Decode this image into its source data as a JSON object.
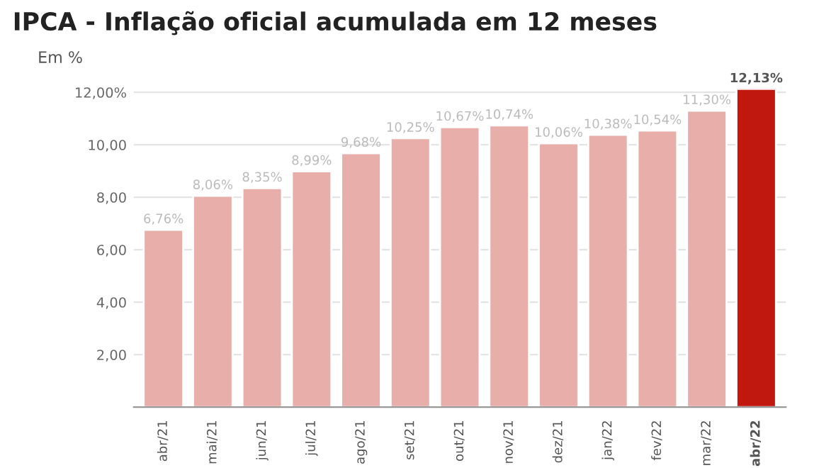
{
  "chart_data": {
    "type": "bar",
    "title": "IPCA - Inflação oficial acumulada em 12 meses",
    "subtitle": "Em %",
    "categories": [
      "abr/21",
      "mai/21",
      "jun/21",
      "jul/21",
      "ago/21",
      "set/21",
      "out/21",
      "nov/21",
      "dez/21",
      "jan/22",
      "fev/22",
      "mar/22",
      "abr/22"
    ],
    "values": [
      6.76,
      8.06,
      8.35,
      8.99,
      9.68,
      10.25,
      10.67,
      10.74,
      10.06,
      10.38,
      10.54,
      11.3,
      12.13
    ],
    "value_labels": [
      "6,76%",
      "8,06%",
      "8,35%",
      "8,99%",
      "9,68%",
      "10,25%",
      "10,67%",
      "10,74%",
      "10,06%",
      "10,38%",
      "10,54%",
      "11,30%",
      "12,13%"
    ],
    "colors": [
      "#e8aeaa",
      "#e8aeaa",
      "#e8aeaa",
      "#e8aeaa",
      "#e8aeaa",
      "#e8aeaa",
      "#e8aeaa",
      "#e8aeaa",
      "#e8aeaa",
      "#e8aeaa",
      "#e8aeaa",
      "#e8aeaa",
      "#c0170f"
    ],
    "ylim": [
      0,
      12.13
    ],
    "yticks": [
      {
        "value": 2,
        "label": "2,00"
      },
      {
        "value": 4,
        "label": "4,00"
      },
      {
        "value": 6,
        "label": "6,00"
      },
      {
        "value": 8,
        "label": "8,00"
      },
      {
        "value": 10,
        "label": "10,00"
      },
      {
        "value": 12,
        "label": "12,00%"
      }
    ],
    "grid": "y"
  }
}
